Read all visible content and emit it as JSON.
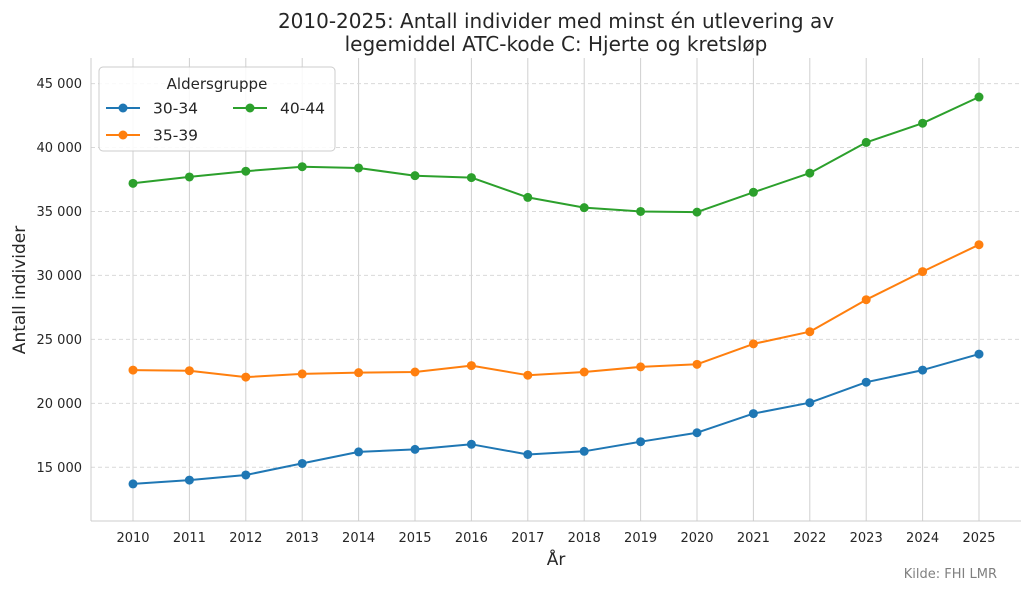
{
  "chart_data": {
    "type": "line",
    "title_line1": "2010-2025: Antall individer med minst én utlevering av",
    "title_line2": "legemiddel ATC-kode C: Hjerte og kretsløp",
    "xlabel": "År",
    "ylabel": "Antall individer",
    "x": [
      2010,
      2011,
      2012,
      2013,
      2014,
      2015,
      2016,
      2017,
      2018,
      2019,
      2020,
      2021,
      2022,
      2023,
      2024,
      2025
    ],
    "ylim": [
      10800,
      47000
    ],
    "yticks": [
      15000,
      20000,
      25000,
      30000,
      35000,
      40000,
      45000
    ],
    "ytick_labels": [
      "15 000",
      "20 000",
      "25 000",
      "30 000",
      "35 000",
      "40 000",
      "45 000"
    ],
    "grid": {
      "x": "solid",
      "y": "dashed"
    },
    "legend": {
      "title": "Aldersgruppe",
      "placement": "top-left"
    },
    "series": [
      {
        "name": "30-34",
        "color": "#1f77b4",
        "values": [
          13700,
          14000,
          14400,
          15300,
          16200,
          16400,
          16800,
          16000,
          16250,
          17000,
          17700,
          19200,
          20050,
          21650,
          22600,
          23850
        ]
      },
      {
        "name": "35-39",
        "color": "#ff7f0e",
        "values": [
          22600,
          22550,
          22050,
          22300,
          22400,
          22450,
          22950,
          22200,
          22450,
          22850,
          23050,
          24650,
          25600,
          28100,
          30300,
          32400
        ]
      },
      {
        "name": "40-44",
        "color": "#2ca02c",
        "values": [
          37200,
          37700,
          38150,
          38500,
          38400,
          37800,
          37650,
          36100,
          35300,
          35000,
          34950,
          36500,
          38000,
          40400,
          41900,
          43950
        ]
      }
    ],
    "source": "Kilde: FHI LMR"
  }
}
